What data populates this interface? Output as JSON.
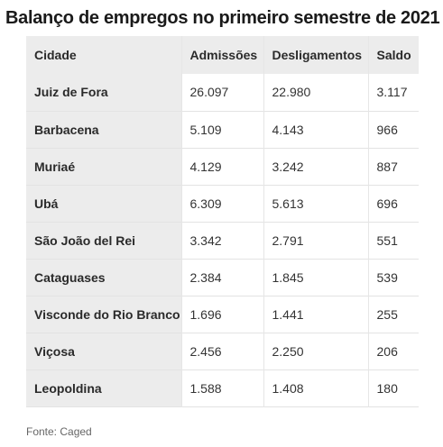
{
  "title": "Balanço de empregos no primeiro semestre de 2021",
  "source": "Fonte: Caged",
  "chart_data": {
    "type": "table",
    "title": "Balanço de empregos no primeiro semestre de 2021",
    "columns": [
      "Cidade",
      "Admissões",
      "Desligamentos",
      "Saldo"
    ],
    "rows": [
      {
        "city": "Juiz de Fora",
        "admissions": "26.097",
        "dismissals": "22.980",
        "balance": "3.117"
      },
      {
        "city": "Barbacena",
        "admissions": "5.109",
        "dismissals": "4.143",
        "balance": "966"
      },
      {
        "city": "Muriaé",
        "admissions": "4.129",
        "dismissals": "3.242",
        "balance": "887"
      },
      {
        "city": "Ubá",
        "admissions": "6.309",
        "dismissals": "5.613",
        "balance": "696"
      },
      {
        "city": "São João del Rei",
        "admissions": "3.342",
        "dismissals": "2.791",
        "balance": "551"
      },
      {
        "city": "Cataguases",
        "admissions": "2.384",
        "dismissals": "1.845",
        "balance": "539"
      },
      {
        "city": "Visconde do Rio Branco",
        "admissions": "1.696",
        "dismissals": "1.441",
        "balance": "255"
      },
      {
        "city": "Viçosa",
        "admissions": "2.456",
        "dismissals": "2.250",
        "balance": "206"
      },
      {
        "city": "Leopoldina",
        "admissions": "1.588",
        "dismissals": "1.408",
        "balance": "180"
      }
    ]
  }
}
